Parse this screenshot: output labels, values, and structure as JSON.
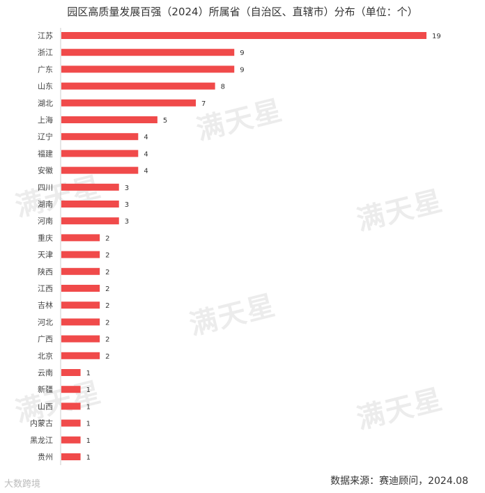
{
  "chart_data": {
    "type": "bar",
    "orientation": "horizontal",
    "title": "园区高质量发展百强（2024）所属省（自治区、直辖市）分布（单位：个）",
    "categories": [
      "江苏",
      "浙江",
      "广东",
      "山东",
      "湖北",
      "上海",
      "辽宁",
      "福建",
      "安徽",
      "四川",
      "湖南",
      "河南",
      "重庆",
      "天津",
      "陕西",
      "江西",
      "吉林",
      "河北",
      "广西",
      "北京",
      "云南",
      "新疆",
      "山西",
      "内蒙古",
      "黑龙江",
      "贵州"
    ],
    "values": [
      19,
      9,
      9,
      8,
      7,
      5,
      4,
      4,
      4,
      3,
      3,
      3,
      2,
      2,
      2,
      2,
      2,
      2,
      2,
      2,
      1,
      1,
      1,
      1,
      1,
      1
    ],
    "xlim": [
      0,
      19
    ],
    "data_labels": true,
    "grid": false,
    "bar_color": "#f04a4a"
  },
  "source": "数据来源：赛迪顾问，2024.08",
  "watermark": "满天星",
  "logo": "大数跨境"
}
